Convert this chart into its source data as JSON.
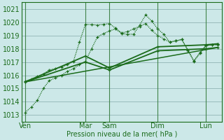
{
  "bg_color": "#cce8e8",
  "grid_color": "#99bbbb",
  "line_color": "#1a6b1a",
  "xlabel_text": "Pression niveau de la mer( hPa )",
  "ylim": [
    1012.5,
    1021.5
  ],
  "yticks": [
    1013,
    1014,
    1015,
    1016,
    1017,
    1018,
    1019,
    1020,
    1021
  ],
  "x_day_labels": [
    "Ven",
    "Mar",
    "Sam",
    "Dim",
    "Lun"
  ],
  "x_day_positions": [
    0.0,
    5.0,
    7.0,
    11.0,
    15.0
  ],
  "xlim": [
    -0.3,
    16.3
  ],
  "lines": [
    {
      "x": [
        0.0,
        0.5,
        1.0,
        1.5,
        2.0,
        2.5,
        3.0,
        3.5,
        4.0,
        4.5,
        5.0,
        5.5,
        6.0,
        6.5,
        7.0,
        7.5,
        8.0,
        8.5,
        9.0,
        9.5,
        10.0,
        10.5,
        11.0,
        11.5,
        12.0,
        12.5,
        13.0,
        13.5,
        14.0,
        14.5,
        15.0,
        15.5,
        16.0
      ],
      "y": [
        1013.2,
        1013.6,
        1014.1,
        1015.0,
        1015.6,
        1015.8,
        1016.0,
        1016.3,
        1016.5,
        1016.8,
        1017.05,
        1018.0,
        1018.9,
        1019.15,
        1019.35,
        1019.5,
        1019.15,
        1019.1,
        1019.1,
        1019.8,
        1020.55,
        1020.1,
        1019.5,
        1019.1,
        1018.5,
        1018.6,
        1018.7,
        1017.9,
        1017.1,
        1017.7,
        1018.25,
        1018.3,
        1018.35
      ],
      "style": "dotted",
      "lw": 0.9,
      "ms": 3.0
    },
    {
      "x": [
        0.0,
        0.5,
        1.0,
        1.5,
        2.0,
        2.5,
        3.0,
        3.5,
        4.0,
        4.5,
        5.0,
        5.5,
        6.0,
        6.5,
        7.0,
        7.5,
        8.0,
        8.5,
        9.0,
        9.5,
        10.0,
        10.5,
        11.0,
        11.5,
        12.0,
        12.5,
        13.0,
        13.5,
        14.0,
        14.5,
        15.0,
        15.5,
        16.0
      ],
      "y": [
        1015.55,
        1015.7,
        1015.9,
        1016.1,
        1016.4,
        1016.5,
        1016.6,
        1016.8,
        1017.05,
        1018.5,
        1019.85,
        1019.82,
        1019.8,
        1019.85,
        1019.9,
        1019.55,
        1019.2,
        1019.3,
        1019.5,
        1019.7,
        1019.9,
        1019.4,
        1019.0,
        1018.75,
        1018.5,
        1018.6,
        1018.7,
        1017.9,
        1017.05,
        1017.65,
        1018.25,
        1018.28,
        1018.3
      ],
      "style": "dotted",
      "lw": 0.9,
      "ms": 3.0
    },
    {
      "x": [
        0.0,
        5.0,
        7.0,
        11.0,
        15.0,
        16.0
      ],
      "y": [
        1015.5,
        1017.45,
        1016.55,
        1018.15,
        1018.3,
        1018.38
      ],
      "style": "solid",
      "lw": 1.3,
      "ms": 3.0
    },
    {
      "x": [
        0.0,
        5.0,
        7.0,
        11.0,
        15.0,
        16.0
      ],
      "y": [
        1015.5,
        1017.0,
        1016.4,
        1017.85,
        1018.0,
        1018.1
      ],
      "style": "solid",
      "lw": 1.3,
      "ms": 3.0
    },
    {
      "x": [
        0.0,
        16.0
      ],
      "y": [
        1015.5,
        1018.1
      ],
      "style": "solid",
      "lw": 1.1,
      "ms": 0
    }
  ]
}
